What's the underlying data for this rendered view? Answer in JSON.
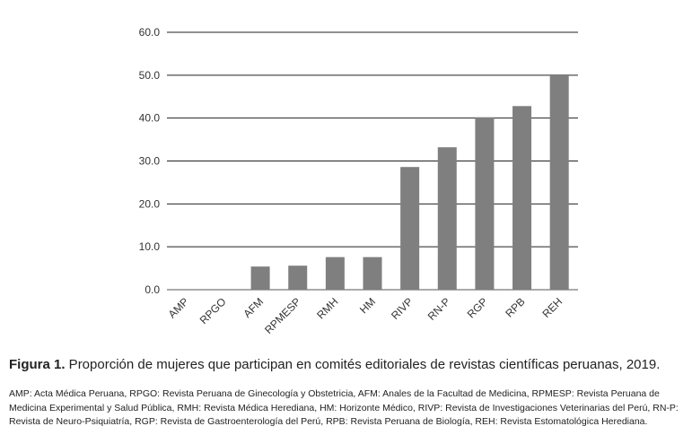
{
  "chart_data": {
    "type": "bar",
    "categories": [
      "AMP",
      "RPGO",
      "AFM",
      "RPMESP",
      "RMH",
      "HM",
      "RIVP",
      "RN-P",
      "RGP",
      "RPB",
      "REH"
    ],
    "values": [
      0.0,
      0.0,
      5.4,
      5.6,
      7.6,
      7.6,
      28.6,
      33.2,
      40.2,
      42.8,
      50.2
    ],
    "yticks": [
      "0.0",
      "10.0",
      "20.0",
      "30.0",
      "40.0",
      "50.0",
      "60.0"
    ],
    "ylim": [
      0,
      60
    ],
    "grid": true,
    "bar_color": "#7f7f7f"
  },
  "caption": {
    "label": "Figura 1.",
    "text": " Proporción de mujeres que participan en comités editoriales de revistas científicas peruanas, 2019."
  },
  "footnote": "AMP: Acta Médica Peruana, RPGO: Revista Peruana de Ginecología y Obstetricia, AFM: Anales de la Facultad de Medicina, RPMESP: Revista Peruana de Medicina Experimental y Salud Pública, RMH: Revista Médica Herediana, HM: Horizonte Médico, RIVP: Revista de Investigaciones Veterinarias del Perú, RN-P: Revista de Neuro-Psiquiatría, RGP: Revista de Gastroenterología del Perú, RPB: Revista Peruana de Biología, REH: Revista Estomatológica Herediana."
}
